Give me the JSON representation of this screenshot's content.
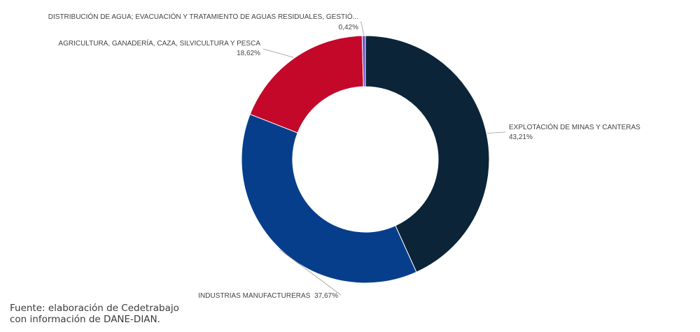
{
  "chart_data": {
    "type": "pie",
    "donut": true,
    "slices": [
      {
        "label": "EXPLOTACIÓN DE MINAS Y CANTERAS",
        "value": 43.21,
        "value_label": "43,21%",
        "color": "#0b2438"
      },
      {
        "label": "INDUSTRIAS MANUFACTURERAS",
        "value": 37.67,
        "value_label": "37,67%",
        "color": "#073e8c"
      },
      {
        "label": "AGRICULTURA, GANADERÍA, CAZA, SILVICULTURA Y PESCA",
        "value": 18.62,
        "value_label": "18,62%",
        "color": "#c3082a"
      },
      {
        "label": "DISTRIBUCIÓN DE AGUA; EVACUACIÓN Y TRATAMIENTO DE AGUAS RESIDUALES, GESTIÓ...",
        "value": 0.42,
        "value_label": "0,42%",
        "color": "#6a56c8"
      }
    ]
  },
  "source": {
    "line1": "Fuente: elaboración de Cedetrabajo",
    "line2": "con información de DANE-DIAN."
  }
}
